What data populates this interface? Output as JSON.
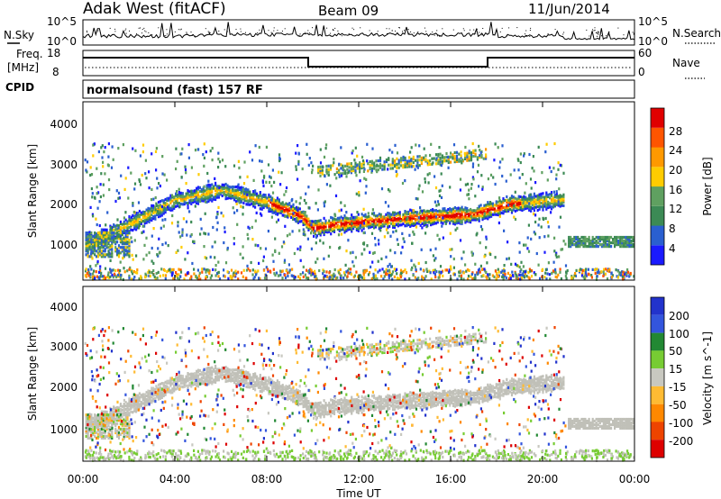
{
  "header": {
    "station": "Adak West (fitACF)",
    "beam": "Beam 09",
    "date": "11/Jun/2014"
  },
  "top_panels": {
    "nsky_label": "N.Sky",
    "nsky_ticks": [
      "10^5",
      "10^0"
    ],
    "nsearch_label": "N.Search",
    "nsearch_ticks": [
      "10^5",
      "10^0"
    ],
    "freq_label_line1": "Freq.",
    "freq_label_line2": "[MHz]",
    "freq_ticks": [
      "18",
      "8"
    ],
    "nave_label": "Nave",
    "nave_ticks": [
      "60",
      "0"
    ],
    "cpid_label": "CPID",
    "cpid_text": "normalsound (fast) 157 RF"
  },
  "colors": {
    "power_scale": [
      "#1a1aff",
      "#2a5fd0",
      "#3c8a55",
      "#5fa060",
      "#ffcc00",
      "#ff9900",
      "#ff5500",
      "#e00000"
    ],
    "velocity_scale": [
      "#2233cc",
      "#3355dd",
      "#228833",
      "#77cc33",
      "#c8c8c0",
      "#ffbb33",
      "#ff8800",
      "#ee4400",
      "#dd0000"
    ],
    "ground_scatter": "#c0c0b8"
  },
  "chart_data": [
    {
      "type": "heatmap",
      "name": "power",
      "ylabel": "Slant Range [km]",
      "ylim": [
        180,
        4600
      ],
      "y_ticks": [
        "1000",
        "2000",
        "3000",
        "4000"
      ],
      "x_ticks": [
        "00:00",
        "04:00",
        "08:00",
        "12:00",
        "16:00",
        "20:00",
        "00:00"
      ],
      "xlim_hours": [
        0,
        24
      ],
      "colorbar": {
        "label": "Power [dB]",
        "ticks": [
          "4",
          "8",
          "12",
          "16",
          "20",
          "24",
          "28"
        ],
        "range": [
          0,
          30
        ]
      },
      "main_echo_band": [
        {
          "t": 0.5,
          "r": 1200
        },
        {
          "t": 2.0,
          "r": 1600
        },
        {
          "t": 4.0,
          "r": 2200
        },
        {
          "t": 6.0,
          "r": 2450
        },
        {
          "t": 8.0,
          "r": 2150
        },
        {
          "t": 9.5,
          "r": 1800
        },
        {
          "t": 10.0,
          "r": 1500
        },
        {
          "t": 11.0,
          "r": 1600
        },
        {
          "t": 14.0,
          "r": 1750
        },
        {
          "t": 17.0,
          "r": 1850
        },
        {
          "t": 18.5,
          "r": 2100
        },
        {
          "t": 20.5,
          "r": 2200
        }
      ]
    },
    {
      "type": "heatmap",
      "name": "velocity",
      "ylabel": "Slant Range [km]",
      "xlabel": "Time UT",
      "ylim": [
        180,
        4600
      ],
      "y_ticks": [
        "1000",
        "2000",
        "3000",
        "4000"
      ],
      "x_ticks": [
        "00:00",
        "04:00",
        "08:00",
        "12:00",
        "16:00",
        "20:00",
        "00:00"
      ],
      "xlim_hours": [
        0,
        24
      ],
      "colorbar": {
        "label": "Velocity [m s^-1]",
        "ticks": [
          "200",
          "100",
          "50",
          "15",
          "-15",
          "-50",
          "-100",
          "-200"
        ]
      }
    }
  ]
}
